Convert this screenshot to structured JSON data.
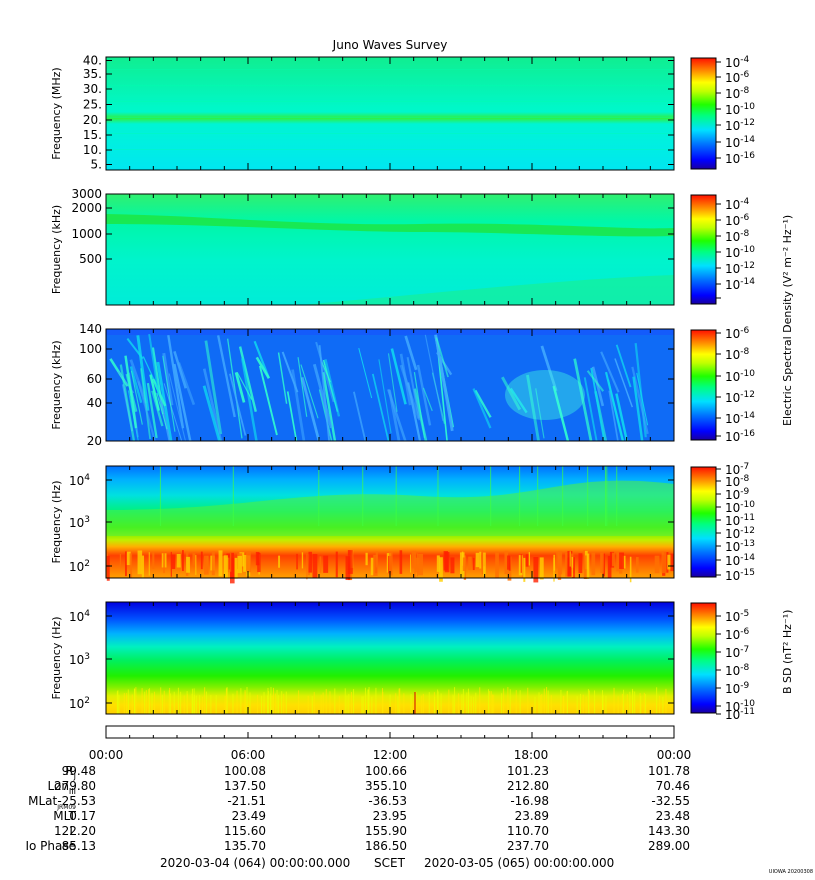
{
  "title": "Juno Waves Survey",
  "colorbar_title": "Electric Spectral Density (V² m⁻² Hz⁻¹)",
  "footer": {
    "start": "2020-03-04 (064) 00:00:00.000",
    "mid": "SCET",
    "end": "2020-03-05 (065) 00:00:00.000",
    "stamp": "UIOWA 20200308"
  },
  "time_labels": [
    "00:00",
    "06:00",
    "12:00",
    "18:00",
    "00:00"
  ],
  "ephemeris": [
    {
      "label": "R",
      "sub": "J",
      "values": [
        "99.48",
        "100.08",
        "100.66",
        "101.23",
        "101.78"
      ]
    },
    {
      "label": "Lon",
      "sub": "III",
      "values": [
        "279.80",
        "137.50",
        "355.10",
        "212.80",
        "70.46"
      ]
    },
    {
      "label": "MLat",
      "sub": "JRM09",
      "values": [
        "-25.53",
        "-21.51",
        "-36.53",
        "-16.98",
        "-32.55"
      ]
    },
    {
      "label": "MLT",
      "sub": "",
      "values": [
        "0.17",
        "23.49",
        "23.95",
        "23.89",
        "23.48"
      ]
    },
    {
      "label": "L",
      "sub": "",
      "values": [
        "122.20",
        "115.60",
        "155.90",
        "110.70",
        "143.30"
      ]
    },
    {
      "label": "Io Phase",
      "sub": "",
      "values": [
        "85.13",
        "135.70",
        "186.50",
        "237.70",
        "289.00"
      ]
    }
  ],
  "chart_data": [
    {
      "type": "heatmap",
      "ylabel": "Frequency (MHz)",
      "y_ticks": [
        "40.",
        "35.",
        "30.",
        "25.",
        "20.",
        "15.",
        "10.",
        "5."
      ],
      "x_range": [
        "2020-03-04 00:00",
        "2020-03-05 00:00"
      ],
      "colorbar_ticks": [
        "10-4",
        "10-6",
        "10-8",
        "10-10",
        "10-12",
        "10-14",
        "10-16"
      ],
      "colorbar_label": "",
      "features": [
        "uniform background near 10^-12",
        "narrow band near 21 MHz at ~10^-11"
      ]
    },
    {
      "type": "heatmap",
      "ylabel": "Frequency (kHz)",
      "y_ticks": [
        "3000",
        "2000",
        "1000",
        "500"
      ],
      "y_scale": "log",
      "x_range": [
        "2020-03-04 00:00",
        "2020-03-05 00:00"
      ],
      "colorbar_ticks": [
        "10-4",
        "10-6",
        "10-8",
        "10-10",
        "10-12",
        "10-14"
      ],
      "colorbar_label": "",
      "features": [
        "enhanced band near 1000-1500 kHz",
        "faint emission rising toward 300 kHz late in the day"
      ]
    },
    {
      "type": "heatmap",
      "ylabel": "Frequency (kHz)",
      "y_ticks": [
        "140",
        "100",
        "60",
        "40",
        "20"
      ],
      "y_scale": "log",
      "x_range": [
        "2020-03-04 00:00",
        "2020-03-05 00:00"
      ],
      "colorbar_ticks": [
        "10-6",
        "10-8",
        "10-10",
        "10-12",
        "10-14",
        "10-16"
      ],
      "colorbar_label": "Electric Spectral Density",
      "features": [
        "background near 10^-14",
        "bursty emission streaks 40-140 kHz"
      ]
    },
    {
      "type": "heatmap",
      "ylabel": "Frequency (Hz)",
      "y_ticks": [
        "10^4",
        "10^3",
        "10^2"
      ],
      "y_scale": "log",
      "x_range": [
        "2020-03-04 00:00",
        "2020-03-05 00:00"
      ],
      "colorbar_ticks": [
        "10-7",
        "10-8",
        "10-9",
        "10-10",
        "10-11",
        "10-12",
        "10-13",
        "10-14",
        "10-15"
      ],
      "colorbar_label": "",
      "features": [
        "intense band 100-300 Hz near 10^-7 to 10^-8",
        "green/cyan above 1 kHz"
      ]
    },
    {
      "type": "heatmap",
      "ylabel": "Frequency (Hz)",
      "y_ticks": [
        "10^4",
        "10^3",
        "10^2"
      ],
      "y_scale": "log",
      "x_range": [
        "2020-03-04 00:00",
        "2020-03-05 00:00"
      ],
      "colorbar_ticks": [
        "10-5",
        "10-6",
        "10-7",
        "10-8",
        "10-9",
        "10-10",
        "10-11"
      ],
      "colorbar_label": "B SD (nT² Hz⁻¹)",
      "features": [
        "blue above 5 kHz",
        "green 200-2000 Hz",
        "yellow below 150 Hz"
      ]
    }
  ]
}
